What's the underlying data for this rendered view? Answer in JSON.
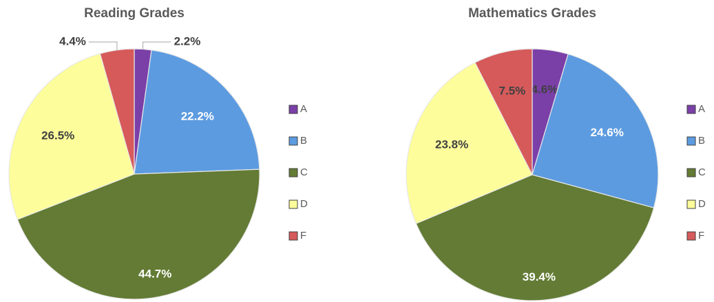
{
  "chart_data": [
    {
      "type": "pie",
      "title": "Reading Grades",
      "categories": [
        "A",
        "B",
        "C",
        "D",
        "F"
      ],
      "values": [
        2.2,
        22.2,
        44.7,
        26.5,
        4.4
      ],
      "value_labels": [
        "2.2%",
        "22.2%",
        "44.7%",
        "26.5%",
        "4.4%"
      ],
      "colors": [
        "#7b3fa8",
        "#5c9be0",
        "#637b34",
        "#fdfd9b",
        "#d65a5a"
      ]
    },
    {
      "type": "pie",
      "title": "Mathematics Grades",
      "categories": [
        "A",
        "B",
        "C",
        "D",
        "F"
      ],
      "values": [
        4.6,
        24.6,
        39.4,
        23.8,
        7.5
      ],
      "value_labels": [
        "4.6%",
        "24.6%",
        "39.4%",
        "23.8%",
        "7.5%"
      ],
      "colors": [
        "#7b3fa8",
        "#5c9be0",
        "#637b34",
        "#fdfd9b",
        "#d65a5a"
      ]
    }
  ]
}
